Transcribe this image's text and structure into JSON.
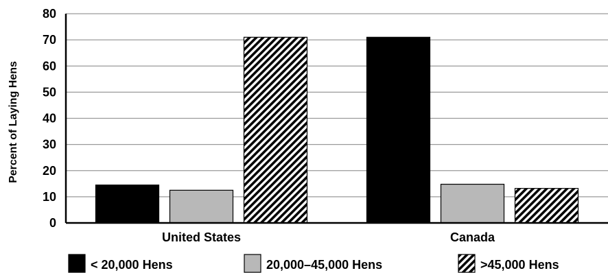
{
  "chart_data": {
    "type": "bar",
    "title": "",
    "xlabel": "",
    "ylabel": "Percent of Laying Hens",
    "ylim": [
      0,
      80
    ],
    "yticks": [
      0,
      10,
      20,
      30,
      40,
      50,
      60,
      70,
      80
    ],
    "grid": true,
    "legend_position": "bottom",
    "categories": [
      "United States",
      "Canada"
    ],
    "series": [
      {
        "name": "< 20,000 Hens",
        "values": [
          14.5,
          71
        ],
        "color": "#000000",
        "pattern": "solid"
      },
      {
        "name": "20,000–45,000 Hens",
        "values": [
          12.5,
          14.8
        ],
        "color": "#b8b8b8",
        "pattern": "solid"
      },
      {
        "name": ">45,000 Hens",
        "values": [
          71,
          13.2
        ],
        "color": "#000000",
        "pattern": "diagonal-hatch"
      }
    ]
  }
}
